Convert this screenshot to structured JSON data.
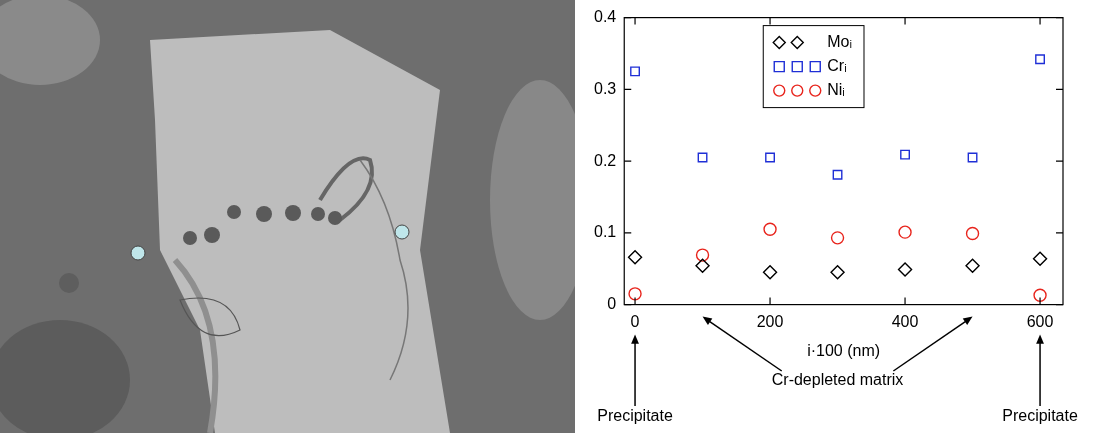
{
  "chart_data": {
    "type": "scatter",
    "x_label": "i·100 (nm)",
    "xlim": [
      -16,
      634
    ],
    "xticks": [
      0,
      200,
      400,
      600
    ],
    "ylim": [
      0,
      0.4
    ],
    "yticks": [
      0,
      0.1,
      0.2,
      0.3,
      0.4
    ],
    "grid": false,
    "legend": "top",
    "series": [
      {
        "name": "Moᵢ",
        "color": "#000000",
        "marker": "diamond",
        "x": [
          0,
          100,
          200,
          300,
          400,
          500,
          600
        ],
        "values": [
          0.066,
          0.054,
          0.045,
          0.045,
          0.049,
          0.054,
          0.064
        ]
      },
      {
        "name": "Crᵢ",
        "color": "#1f2fd6",
        "marker": "square",
        "x": [
          0,
          100,
          200,
          300,
          400,
          500,
          600
        ],
        "values": [
          0.325,
          0.205,
          0.205,
          0.181,
          0.209,
          0.205,
          0.342
        ]
      },
      {
        "name": "Niᵢ",
        "color": "#e8241c",
        "marker": "circle",
        "x": [
          0,
          100,
          200,
          300,
          400,
          500,
          600
        ],
        "values": [
          0.015,
          0.069,
          0.105,
          0.093,
          0.101,
          0.099,
          0.013
        ]
      }
    ],
    "annotations": [
      {
        "text": "Precipitate",
        "x": [
          0
        ]
      },
      {
        "text": "Cr-depleted matrix",
        "x": [
          100,
          500
        ]
      },
      {
        "text": "Precipitate",
        "x": [
          600
        ]
      }
    ]
  }
}
